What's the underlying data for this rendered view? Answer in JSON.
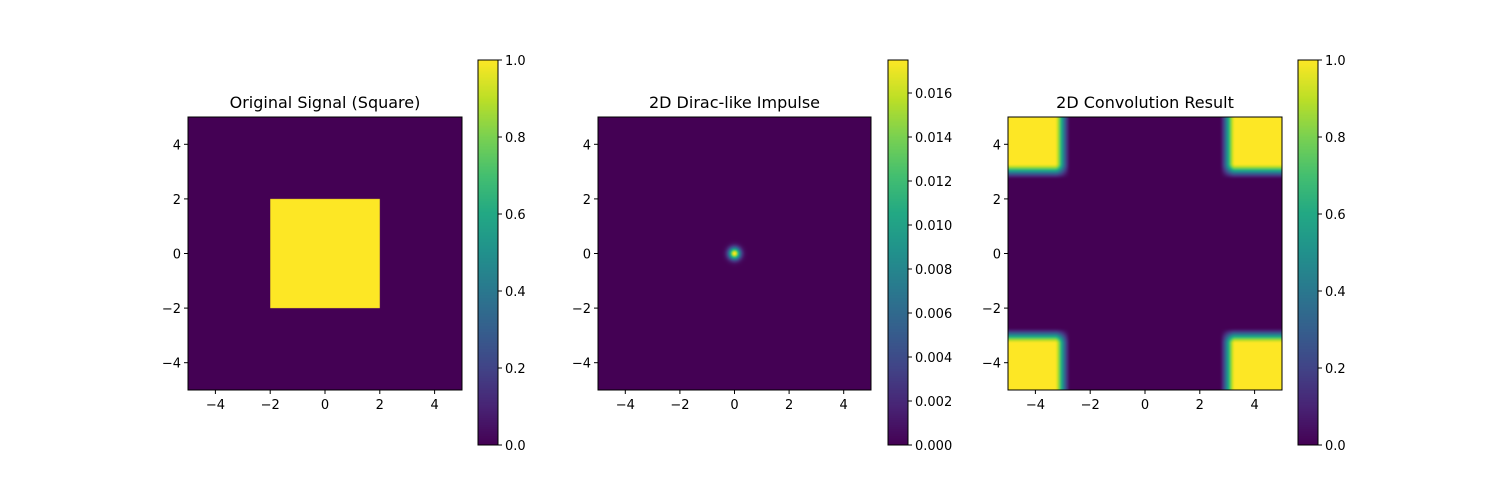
{
  "chart_data": [
    {
      "type": "heatmap",
      "title": "Original Signal (Square)",
      "x_range": [
        -5,
        5
      ],
      "y_range": [
        -5,
        5
      ],
      "xticks": [
        -4,
        -2,
        0,
        2,
        4
      ],
      "yticks": [
        -4,
        -2,
        0,
        2,
        4
      ],
      "colormap": "viridis",
      "colorbar_range": [
        0,
        1
      ],
      "colorbar_ticks": [
        "0.0",
        "0.2",
        "0.4",
        "0.6",
        "0.8",
        "1.0"
      ],
      "function": "square",
      "square_half_width": 2,
      "square_value": 1,
      "background_value": 0
    },
    {
      "type": "heatmap",
      "title": "2D Dirac-like Impulse",
      "x_range": [
        -5,
        5
      ],
      "y_range": [
        -5,
        5
      ],
      "xticks": [
        -4,
        -2,
        0,
        2,
        4
      ],
      "yticks": [
        -4,
        -2,
        0,
        2,
        4
      ],
      "colormap": "viridis",
      "colorbar_range": [
        0,
        0.0175
      ],
      "colorbar_ticks": [
        "0.000",
        "0.002",
        "0.004",
        "0.006",
        "0.008",
        "0.010",
        "0.012",
        "0.014",
        "0.016"
      ],
      "function": "gaussian",
      "center": [
        0,
        0
      ],
      "sigma": 0.15,
      "peak_value": 0.0175
    },
    {
      "type": "heatmap",
      "title": "2D Convolution Result",
      "x_range": [
        -5,
        5
      ],
      "y_range": [
        -5,
        5
      ],
      "xticks": [
        -4,
        -2,
        0,
        2,
        4
      ],
      "yticks": [
        -4,
        -2,
        0,
        2,
        4
      ],
      "colormap": "viridis",
      "colorbar_range": [
        0,
        1
      ],
      "colorbar_ticks": [
        "0.0",
        "0.2",
        "0.4",
        "0.6",
        "0.8",
        "1.0"
      ],
      "function": "corner-squares",
      "corner_edge": 3,
      "edge_softness": 0.15,
      "corner_value": 1,
      "background_value": 0
    }
  ],
  "colors": {
    "viridis_low": "#440154",
    "viridis_high": "#fde725"
  }
}
